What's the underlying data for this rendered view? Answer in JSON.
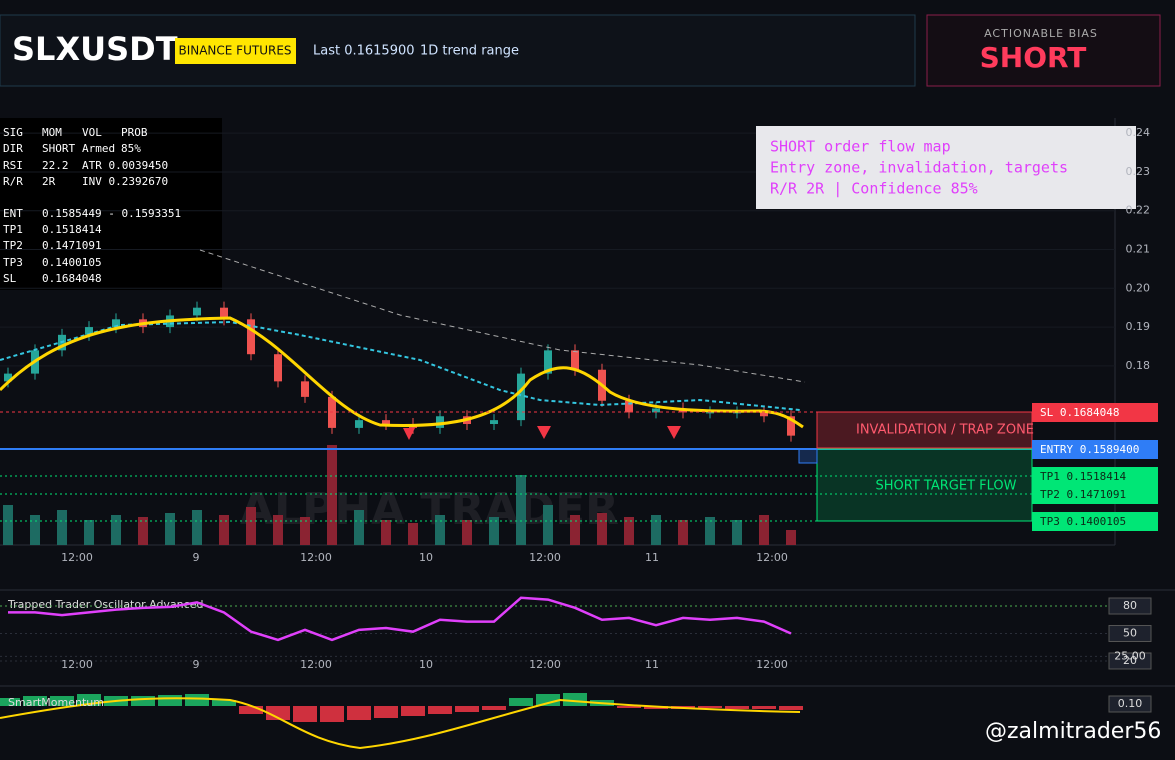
{
  "header": {
    "symbol": "SLXUSDT",
    "exchange": "BINANCE FUTURES",
    "last": "Last 0.1615900",
    "range": "1D trend range"
  },
  "bias": {
    "label": "ACTIONABLE BIAS",
    "value": "SHORT"
  },
  "stats": {
    "rows": [
      [
        "SIG",
        "MOM",
        "VOL",
        "PROB"
      ],
      [
        "DIR",
        "SHORT",
        "Armed",
        "85%"
      ],
      [
        "RSI",
        "22.2",
        "ATR 0.0039450"
      ],
      [
        "R/R",
        "2R",
        "INV 0.2392670"
      ],
      [
        "ENT",
        "0.1585449 - 0.1593351"
      ],
      [
        "TP1",
        "0.1518414"
      ],
      [
        "TP2",
        "0.1471091"
      ],
      [
        "TP3",
        "0.1400105"
      ],
      [
        "SL",
        "0.1684048"
      ]
    ]
  },
  "note": {
    "lines": [
      "SHORT order flow map",
      "Entry zone, invalidation, targets",
      "R/R 2R | Confidence 85%"
    ]
  },
  "zones": {
    "invalidation": "INVALIDATION / TRAP ZONE",
    "target": "SHORT TARGET FLOW"
  },
  "levels": [
    "SL 0.1684048",
    "ENTRY 0.1589400",
    "TP1 0.1518414",
    "TP2 0.1471091",
    "TP3 0.1400105"
  ],
  "watermark": "ALPHA TRADER",
  "handle": "@zalmitrader56",
  "time_labels": [
    "12:00",
    "9",
    "12:00",
    "10",
    "12:00",
    "11",
    "12:00"
  ],
  "chart_data": [
    {
      "type": "candlestick",
      "open": [
        0.176,
        0.178,
        0.184,
        0.188,
        0.19,
        0.192,
        0.19,
        0.193,
        0.195,
        0.192,
        0.183,
        0.176,
        0.172,
        0.164,
        0.166,
        0.165,
        0.164,
        0.167,
        0.165,
        0.166,
        0.178,
        0.184,
        0.179,
        0.171,
        0.168,
        0.169,
        0.168,
        0.168,
        0.168,
        0.167
      ],
      "close": [
        0.178,
        0.184,
        0.188,
        0.19,
        0.192,
        0.19,
        0.193,
        0.195,
        0.192,
        0.183,
        0.176,
        0.172,
        0.164,
        0.166,
        0.165,
        0.164,
        0.167,
        0.165,
        0.166,
        0.178,
        0.184,
        0.179,
        0.171,
        0.168,
        0.169,
        0.168,
        0.168,
        0.168,
        0.167,
        0.162
      ],
      "ylim": [
        0.1338,
        0.2434
      ],
      "yticks": [
        0.24,
        0.23,
        0.22,
        0.21,
        {
          "value": 0.2,
          "label": "0.20"
        },
        0.19,
        0.18
      ]
    },
    {
      "type": "bar",
      "values": [
        40,
        30,
        35,
        25,
        30,
        28,
        32,
        35,
        30,
        38,
        30,
        28,
        100,
        35,
        25,
        22,
        30,
        25,
        28,
        70,
        40,
        30,
        32,
        28,
        30,
        25,
        28,
        25,
        30,
        15
      ],
      "ylim": [
        0,
        100
      ]
    },
    {
      "type": "line",
      "title": "Trapped Trader Oscillator Advanced",
      "color": "#e040fb",
      "values": [
        73,
        73,
        70,
        73,
        76,
        78,
        79,
        84,
        73,
        52,
        43,
        54,
        43,
        54,
        56,
        52,
        65,
        63,
        63,
        89,
        87,
        78,
        65,
        67,
        59,
        67,
        65,
        67,
        63,
        50
      ],
      "ylim": [
        3.6,
        95.3
      ],
      "yticks": [
        80,
        50,
        {
          "value": 25,
          "label": "25.00"
        },
        20
      ]
    },
    {
      "type": "histogram",
      "title": "SmartMomentum",
      "values": [
        0.4,
        0.5,
        0.5,
        0.6,
        0.5,
        0.5,
        0.55,
        0.6,
        0.3,
        -0.4,
        -0.7,
        -0.8,
        -0.8,
        -0.7,
        -0.6,
        -0.5,
        -0.4,
        -0.3,
        -0.2,
        0.4,
        0.6,
        0.65,
        0.3,
        -0.1,
        -0.15,
        -0.15,
        -0.1,
        -0.15,
        -0.15,
        -0.2
      ],
      "ylim": [
        -2.3,
        0.9
      ],
      "yticks": [
        {
          "value": 0.1,
          "label": "0.10"
        }
      ]
    }
  ]
}
